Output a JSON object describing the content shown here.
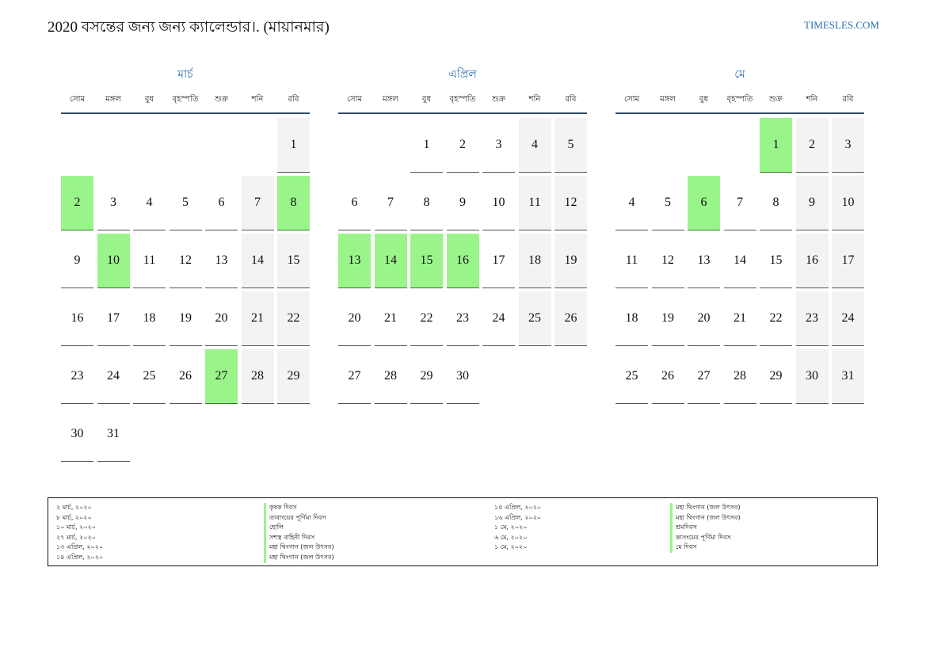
{
  "header": {
    "title": "2020 বসন্তের জন্য জন্য ক্যালেন্ডার।. (মায়ানমার)",
    "brand": "TIMESLES.COM"
  },
  "colors": {
    "accent": "#2a6db5",
    "holiday": "#99f58a",
    "weekend": "#f3f3f3"
  },
  "weekdays": [
    "সোম",
    "মঙ্গল",
    "বুধ",
    "বৃহস্পতি",
    "শুক্র",
    "শনি",
    "রবি"
  ],
  "months": [
    {
      "name": "মার্চ",
      "weeks": [
        [
          "",
          "",
          "",
          "",
          "",
          "",
          "1"
        ],
        [
          "2",
          "3",
          "4",
          "5",
          "6",
          "7",
          "8"
        ],
        [
          "9",
          "10",
          "11",
          "12",
          "13",
          "14",
          "15"
        ],
        [
          "16",
          "17",
          "18",
          "19",
          "20",
          "21",
          "22"
        ],
        [
          "23",
          "24",
          "25",
          "26",
          "27",
          "28",
          "29"
        ],
        [
          "30",
          "31",
          "",
          "",
          "",
          "",
          ""
        ]
      ],
      "holidays": [
        "2",
        "8",
        "10",
        "27"
      ]
    },
    {
      "name": "এপ্রিল",
      "weeks": [
        [
          "",
          "",
          "1",
          "2",
          "3",
          "4",
          "5"
        ],
        [
          "6",
          "7",
          "8",
          "9",
          "10",
          "11",
          "12"
        ],
        [
          "13",
          "14",
          "15",
          "16",
          "17",
          "18",
          "19"
        ],
        [
          "20",
          "21",
          "22",
          "23",
          "24",
          "25",
          "26"
        ],
        [
          "27",
          "28",
          "29",
          "30",
          "",
          "",
          ""
        ]
      ],
      "holidays": [
        "13",
        "14",
        "15",
        "16"
      ]
    },
    {
      "name": "মে",
      "weeks": [
        [
          "",
          "",
          "",
          "",
          "1",
          "2",
          "3"
        ],
        [
          "4",
          "5",
          "6",
          "7",
          "8",
          "9",
          "10"
        ],
        [
          "11",
          "12",
          "13",
          "14",
          "15",
          "16",
          "17"
        ],
        [
          "18",
          "19",
          "20",
          "21",
          "22",
          "23",
          "24"
        ],
        [
          "25",
          "26",
          "27",
          "28",
          "29",
          "30",
          "31"
        ]
      ],
      "holidays": [
        "1",
        "6"
      ]
    }
  ],
  "legend": {
    "left": [
      {
        "date": "২ মার্চ, ২০২০",
        "name": "কৃষক দিবস"
      },
      {
        "date": "৮ মার্চ, ২০২০",
        "name": "তাবাংয়ের পূর্ণিমা দিবস"
      },
      {
        "date": "১০ মার্চ, ২০২০",
        "name": "হোলি"
      },
      {
        "date": "২৭ মার্চ, ২০২০",
        "name": "সশস্ত্র বাহিনী দিবস"
      },
      {
        "date": "১৩ এপ্রিল, ২০২০",
        "name": "মহা থিংগান (জল উৎসব)"
      },
      {
        "date": "১৪ এপ্রিল, ২০২০",
        "name": "মহা থিংগান (জল উৎসব)"
      }
    ],
    "right": [
      {
        "date": "১৫ এপ্রিল, ২০২০",
        "name": "মহা থিংগান (জল উৎসব)"
      },
      {
        "date": "১৬ এপ্রিল, ২০২০",
        "name": "মহা থিংগান (জল উৎসব)"
      },
      {
        "date": "১ মে, ২০২০",
        "name": "শ্রমদিবস"
      },
      {
        "date": "৬ মে, ২০২০",
        "name": "কাসংয়ের পূর্ণিমা দিবস"
      },
      {
        "date": "১ মে, ২০২০",
        "name": "মে দিবস"
      }
    ]
  }
}
